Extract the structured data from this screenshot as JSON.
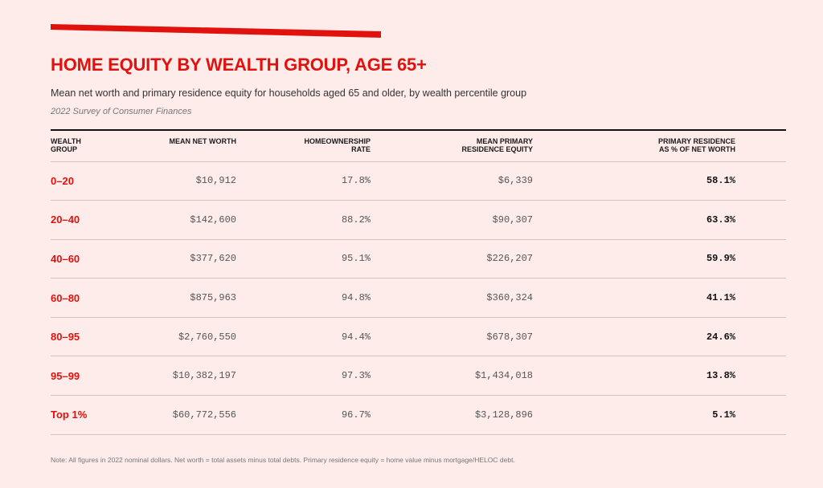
{
  "colors": {
    "accent": "#e1120e",
    "background": "#fdecea",
    "text": "#1a1a1a"
  },
  "chart_data": {
    "type": "table",
    "title": "HOME EQUITY BY WEALTH GROUP, AGE 65+",
    "subtitle": "Mean net worth and primary residence equity for households aged 65 and older, by wealth percentile group",
    "source": "2022 Survey of Consumer Finances",
    "columns": [
      "WEALTH\nGROUP",
      "MEAN NET WORTH",
      "HOMEOWNERSHIP\nRATE",
      "MEAN PRIMARY\nRESIDENCE EQUITY",
      "PRIMARY RESIDENCE\nAS % OF NET WORTH"
    ],
    "rows": [
      {
        "group": "0–20",
        "net_worth": "$10,912",
        "ownership": "17.8%",
        "equity": "$6,339",
        "share": "58.1%"
      },
      {
        "group": "20–40",
        "net_worth": "$142,600",
        "ownership": "88.2%",
        "equity": "$90,307",
        "share": "63.3%"
      },
      {
        "group": "40–60",
        "net_worth": "$377,620",
        "ownership": "95.1%",
        "equity": "$226,207",
        "share": "59.9%"
      },
      {
        "group": "60–80",
        "net_worth": "$875,963",
        "ownership": "94.8%",
        "equity": "$360,324",
        "share": "41.1%"
      },
      {
        "group": "80–95",
        "net_worth": "$2,760,550",
        "ownership": "94.4%",
        "equity": "$678,307",
        "share": "24.6%"
      },
      {
        "group": "95–99",
        "net_worth": "$10,382,197",
        "ownership": "97.3%",
        "equity": "$1,434,018",
        "share": "13.8%"
      },
      {
        "group": "Top 1%",
        "net_worth": "$60,772,556",
        "ownership": "96.7%",
        "equity": "$3,128,896",
        "share": "5.1%"
      }
    ],
    "note": "Note: All figures in 2022 nominal dollars. Net worth = total assets minus total debts. Primary residence equity = home value minus mortgage/HELOC debt."
  }
}
